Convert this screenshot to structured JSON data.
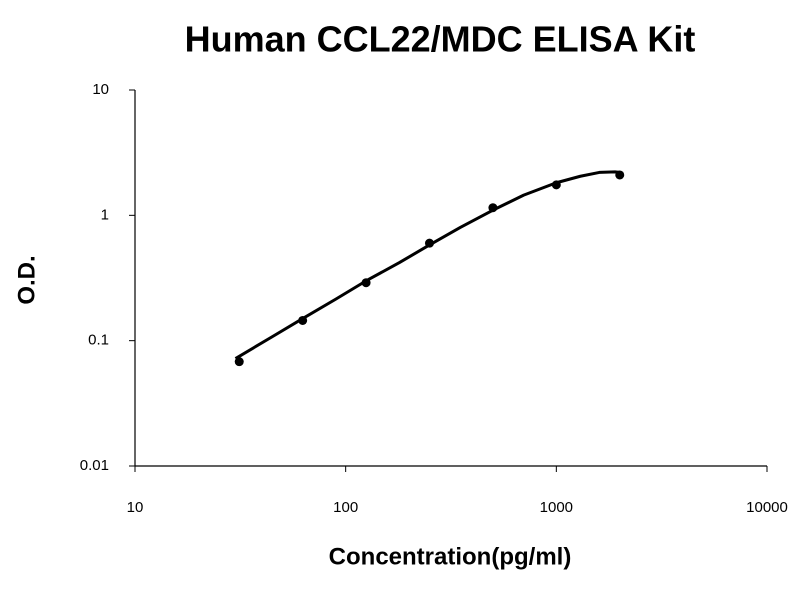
{
  "chart_data": {
    "type": "scatter",
    "title": "Human CCL22/MDC ELISA Kit",
    "x_label": "Concentration(pg/ml)",
    "y_label": "O.D.",
    "x": [
      31.25,
      62.5,
      125,
      250,
      500,
      1000,
      2000
    ],
    "values": [
      0.068,
      0.145,
      0.29,
      0.6,
      1.15,
      1.75,
      2.1
    ],
    "color": "#000000",
    "trendline": {
      "x": [
        30,
        45,
        62.5,
        90,
        125,
        180,
        250,
        350,
        500,
        700,
        1000,
        1300,
        1600,
        1900,
        2000
      ],
      "values": [
        0.072,
        0.108,
        0.15,
        0.215,
        0.3,
        0.42,
        0.58,
        0.8,
        1.1,
        1.45,
        1.82,
        2.05,
        2.2,
        2.22,
        2.2
      ]
    },
    "log_x": true,
    "log_y": true,
    "xlim": [
      10,
      10000
    ],
    "xticks": [
      10,
      100,
      1000,
      10000
    ],
    "ylim": [
      0.01,
      10
    ],
    "yticks": [
      0.01,
      0.1,
      1,
      10
    ]
  }
}
